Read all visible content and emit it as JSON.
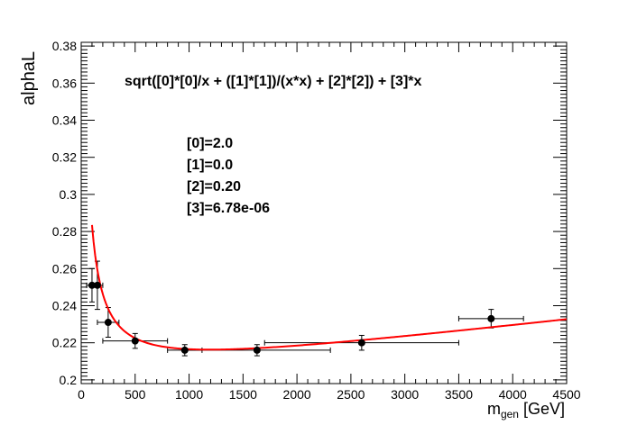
{
  "chart_data": {
    "type": "scatter",
    "title": "",
    "xlabel_main": "m",
    "xlabel_sub": "gen",
    "xlabel_unit": " [GeV]",
    "ylabel": "alphaL",
    "xlim": [
      0,
      4500
    ],
    "ylim": [
      0.198,
      0.382
    ],
    "x_ticks": [
      0,
      500,
      1000,
      1500,
      2000,
      2500,
      3000,
      3500,
      4000,
      4500
    ],
    "y_ticks": [
      0.2,
      0.22,
      0.24,
      0.26,
      0.28,
      0.3,
      0.32,
      0.34,
      0.36,
      0.38
    ],
    "y_tick_labels": [
      "0.2",
      "0.22",
      "0.24",
      "0.26",
      "0.28",
      "0.3",
      "0.32",
      "0.34",
      "0.36",
      "0.38"
    ],
    "points": [
      {
        "x": 100,
        "y": 0.251,
        "xerr": 50,
        "yerr": 0.009
      },
      {
        "x": 150,
        "y": 0.251,
        "xerr": 50,
        "yerr": 0.013
      },
      {
        "x": 250,
        "y": 0.231,
        "xerr": 100,
        "yerr": 0.008
      },
      {
        "x": 500,
        "y": 0.221,
        "xerr": 300,
        "yerr": 0.004
      },
      {
        "x": 960,
        "y": 0.216,
        "xerr": 160,
        "yerr": 0.003
      },
      {
        "x": 1630,
        "y": 0.216,
        "xerr": 680,
        "yerr": 0.003
      },
      {
        "x": 2600,
        "y": 0.22,
        "xerr": 900,
        "yerr": 0.004
      },
      {
        "x": 3800,
        "y": 0.233,
        "xerr": 300,
        "yerr": 0.005
      }
    ],
    "fit": {
      "formula": "sqrt([0]*[0]/x + ([1]*[1])/(x*x) + [2]*[2]) + [3]*x",
      "params": [
        2.0,
        0.0,
        0.2,
        6.78e-06
      ],
      "x_range": [
        100,
        4500
      ],
      "color": "#ff0000"
    },
    "annotations": {
      "formula": "sqrt([0]*[0]/x + ([1]*[1])/(x*x) + [2]*[2]) + [3]*x",
      "param_lines": [
        "[0]=2.0",
        "[1]=0.0",
        "[2]=0.20",
        "[3]=6.78e-06"
      ]
    },
    "grid": false,
    "legend": "none"
  }
}
